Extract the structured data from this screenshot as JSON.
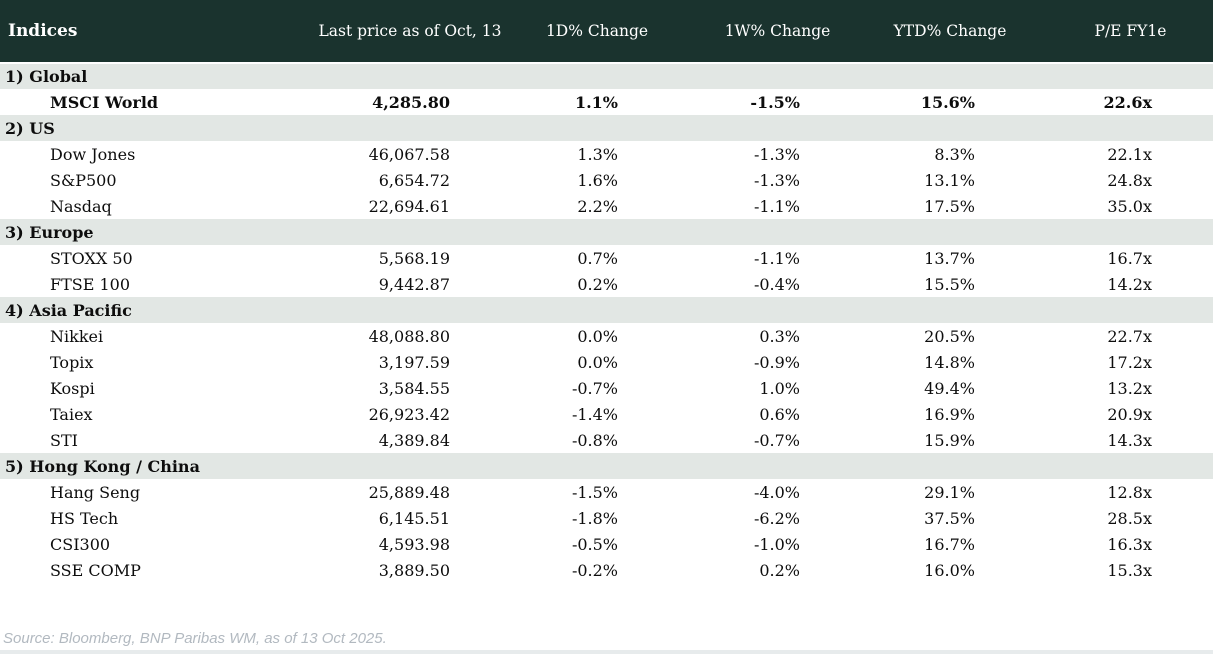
{
  "table": {
    "title": "Indices",
    "columns": [
      "Last price as of Oct, 13",
      "1D% Change",
      "1W% Change",
      "YTD% Change",
      "P/E FY1e"
    ],
    "sections": [
      {
        "label": "1) Global",
        "rows": [
          {
            "name": "MSCI World",
            "bold": true,
            "price": "4,285.80",
            "d1": "1.1%",
            "w1": "-1.5%",
            "ytd": "15.6%",
            "pe": "22.6x"
          }
        ]
      },
      {
        "label": "2) US",
        "rows": [
          {
            "name": "Dow Jones",
            "price": "46,067.58",
            "d1": "1.3%",
            "w1": "-1.3%",
            "ytd": "8.3%",
            "pe": "22.1x"
          },
          {
            "name": "S&P500",
            "price": "6,654.72",
            "d1": "1.6%",
            "w1": "-1.3%",
            "ytd": "13.1%",
            "pe": "24.8x"
          },
          {
            "name": "Nasdaq",
            "price": "22,694.61",
            "d1": "2.2%",
            "w1": "-1.1%",
            "ytd": "17.5%",
            "pe": "35.0x"
          }
        ]
      },
      {
        "label": "3) Europe",
        "rows": [
          {
            "name": "STOXX 50",
            "price": "5,568.19",
            "d1": "0.7%",
            "w1": "-1.1%",
            "ytd": "13.7%",
            "pe": "16.7x"
          },
          {
            "name": "FTSE 100",
            "price": "9,442.87",
            "d1": "0.2%",
            "w1": "-0.4%",
            "ytd": "15.5%",
            "pe": "14.2x"
          }
        ]
      },
      {
        "label": "4) Asia Pacific",
        "rows": [
          {
            "name": "Nikkei",
            "price": "48,088.80",
            "d1": "0.0%",
            "w1": "0.3%",
            "ytd": "20.5%",
            "pe": "22.7x"
          },
          {
            "name": "Topix",
            "price": "3,197.59",
            "d1": "0.0%",
            "w1": "-0.9%",
            "ytd": "14.8%",
            "pe": "17.2x"
          },
          {
            "name": "Kospi",
            "price": "3,584.55",
            "d1": "-0.7%",
            "w1": "1.0%",
            "ytd": "49.4%",
            "pe": "13.2x"
          },
          {
            "name": "Taiex",
            "price": "26,923.42",
            "d1": "-1.4%",
            "w1": "0.6%",
            "ytd": "16.9%",
            "pe": "20.9x"
          },
          {
            "name": "STI",
            "price": "4,389.84",
            "d1": "-0.8%",
            "w1": "-0.7%",
            "ytd": "15.9%",
            "pe": "14.3x"
          }
        ]
      },
      {
        "label": "5) Hong Kong / China",
        "rows": [
          {
            "name": "Hang Seng",
            "price": "25,889.48",
            "d1": "-1.5%",
            "w1": "-4.0%",
            "ytd": "29.1%",
            "pe": "12.8x"
          },
          {
            "name": "HS Tech",
            "price": "6,145.51",
            "d1": "-1.8%",
            "w1": "-6.2%",
            "ytd": "37.5%",
            "pe": "28.5x"
          },
          {
            "name": "CSI300",
            "price": "4,593.98",
            "d1": "-0.5%",
            "w1": "-1.0%",
            "ytd": "16.7%",
            "pe": "16.3x"
          },
          {
            "name": "SSE COMP",
            "price": "3,889.50",
            "d1": "-0.2%",
            "w1": "0.2%",
            "ytd": "16.0%",
            "pe": "15.3x"
          }
        ]
      }
    ]
  },
  "source": "Source: Bloomberg, BNP Paribas WM, as of 13 Oct 2025.",
  "colors": {
    "header_bg": "#1a332e",
    "band_bg": "#e2e7e4",
    "positive": "#0e7b33",
    "negative": "#c3131f",
    "neutral": "#0d0d0d"
  },
  "chart_data": {
    "type": "table",
    "title": "Indices",
    "columns": [
      "Indices",
      "Last price as of Oct, 13",
      "1D% Change",
      "1W% Change",
      "YTD% Change",
      "P/E FY1e"
    ],
    "rows": [
      [
        "1) Global",
        "",
        "",
        "",
        "",
        ""
      ],
      [
        "MSCI World",
        4285.8,
        1.1,
        -1.5,
        15.6,
        22.6
      ],
      [
        "2) US",
        "",
        "",
        "",
        "",
        ""
      ],
      [
        "Dow Jones",
        46067.58,
        1.3,
        -1.3,
        8.3,
        22.1
      ],
      [
        "S&P500",
        6654.72,
        1.6,
        -1.3,
        13.1,
        24.8
      ],
      [
        "Nasdaq",
        22694.61,
        2.2,
        -1.1,
        17.5,
        35.0
      ],
      [
        "3) Europe",
        "",
        "",
        "",
        "",
        ""
      ],
      [
        "STOXX 50",
        5568.19,
        0.7,
        -1.1,
        13.7,
        16.7
      ],
      [
        "FTSE 100",
        9442.87,
        0.2,
        -0.4,
        15.5,
        14.2
      ],
      [
        "4) Asia Pacific",
        "",
        "",
        "",
        "",
        ""
      ],
      [
        "Nikkei",
        48088.8,
        0.0,
        0.3,
        20.5,
        22.7
      ],
      [
        "Topix",
        3197.59,
        0.0,
        -0.9,
        14.8,
        17.2
      ],
      [
        "Kospi",
        3584.55,
        -0.7,
        1.0,
        49.4,
        13.2
      ],
      [
        "Taiex",
        26923.42,
        -1.4,
        0.6,
        16.9,
        20.9
      ],
      [
        "STI",
        4389.84,
        -0.8,
        -0.7,
        15.9,
        14.3
      ],
      [
        "5) Hong Kong / China",
        "",
        "",
        "",
        "",
        ""
      ],
      [
        "Hang Seng",
        25889.48,
        -1.5,
        -4.0,
        29.1,
        12.8
      ],
      [
        "HS Tech",
        6145.51,
        -1.8,
        -6.2,
        37.5,
        28.5
      ],
      [
        "CSI300",
        4593.98,
        -0.5,
        -1.0,
        16.7,
        16.3
      ],
      [
        "SSE COMP",
        3889.5,
        -0.2,
        0.2,
        16.0,
        15.3
      ]
    ],
    "notes": "Percentage changes colored green when positive, red when negative, black when 0.0"
  }
}
